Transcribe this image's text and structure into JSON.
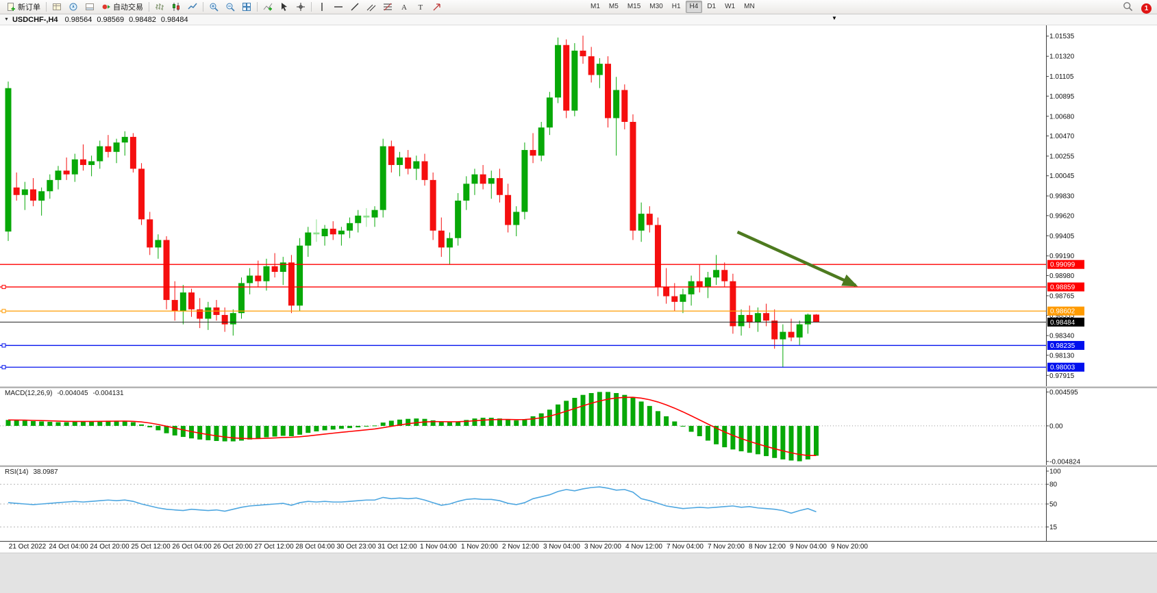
{
  "toolbar": {
    "new_order_label": "新订单",
    "autotrade_label": "自动交易",
    "timeframes": [
      "M1",
      "M5",
      "M15",
      "M30",
      "H1",
      "H4",
      "D1",
      "W1",
      "MN"
    ],
    "active_timeframe": "H4",
    "notification_count": "1"
  },
  "glyphs": {
    "caption_dropdown": "▼",
    "shift_marker": "▼"
  },
  "chart_header": {
    "title": "USDCHF-,H4",
    "open": "0.98564",
    "high": "0.98569",
    "low": "0.98482",
    "close": "0.98484"
  },
  "chart_data": {
    "type": "candlestick",
    "symbol": "USDCHF",
    "timeframe": "H4",
    "colors": {
      "up": "#07a807",
      "down": "#f50f0f",
      "doji": "#8fe08f",
      "macd_bar": "#07a807",
      "macd_signal": "#ff0000",
      "rsi_line": "#4da6e0"
    },
    "price_axis": [
      "1.01535",
      "1.01320",
      "1.01105",
      "1.00895",
      "1.00680",
      "1.00470",
      "1.00255",
      "1.00045",
      "0.99830",
      "0.99620",
      "0.99405",
      "0.99190",
      "0.98980",
      "0.98765",
      "0.98555",
      "0.98340",
      "0.98130",
      "0.97915"
    ],
    "time_axis": [
      "21 Oct 2022",
      "24 Oct 04:00",
      "24 Oct 20:00",
      "25 Oct 12:00",
      "26 Oct 04:00",
      "26 Oct 20:00",
      "27 Oct 12:00",
      "28 Oct 04:00",
      "30 Oct 23:00",
      "31 Oct 12:00",
      "1 Nov 04:00",
      "1 Nov 20:00",
      "2 Nov 12:00",
      "3 Nov 04:00",
      "3 Nov 20:00",
      "4 Nov 12:00",
      "7 Nov 04:00",
      "7 Nov 20:00",
      "8 Nov 12:00",
      "9 Nov 04:00",
      "9 Nov 20:00"
    ],
    "candles": [
      [
        0.9945,
        1.0105,
        0.9935,
        1.0098
      ],
      [
        0.9992,
        1.0008,
        0.9978,
        0.9984
      ],
      [
        0.9984,
        0.9998,
        0.9968,
        0.999
      ],
      [
        0.999,
        1.0002,
        0.9972,
        0.9978
      ],
      [
        0.9978,
        0.9992,
        0.9962,
        0.9988
      ],
      [
        0.9988,
        1.0006,
        0.998,
        1.0
      ],
      [
        1.0,
        1.0015,
        0.999,
        1.001
      ],
      [
        1.001,
        1.0024,
        1.0,
        1.0006
      ],
      [
        1.0006,
        1.0028,
        0.9998,
        1.0022
      ],
      [
        1.0022,
        1.0038,
        1.001,
        1.0016
      ],
      [
        1.0016,
        1.0026,
        1.0004,
        1.002
      ],
      [
        1.002,
        1.0042,
        1.0012,
        1.0036
      ],
      [
        1.0036,
        1.0048,
        1.0024,
        1.003
      ],
      [
        1.003,
        1.0044,
        1.0018,
        1.004
      ],
      [
        1.004,
        1.0052,
        1.0026,
        1.0046
      ],
      [
        1.0046,
        1.005,
        1.0008,
        1.0012
      ],
      [
        1.0012,
        1.0018,
        0.9952,
        0.9958
      ],
      [
        0.9958,
        0.9966,
        0.992,
        0.9928
      ],
      [
        0.9928,
        0.9942,
        0.9916,
        0.9936
      ],
      [
        0.9936,
        0.994,
        0.9862,
        0.9872
      ],
      [
        0.9872,
        0.9892,
        0.985,
        0.986
      ],
      [
        0.986,
        0.9888,
        0.9846,
        0.988
      ],
      [
        0.988,
        0.9884,
        0.9854,
        0.9862
      ],
      [
        0.9862,
        0.9874,
        0.9842,
        0.9852
      ],
      [
        0.9852,
        0.987,
        0.984,
        0.9864
      ],
      [
        0.9864,
        0.9872,
        0.985,
        0.9856
      ],
      [
        0.9856,
        0.9864,
        0.9838,
        0.9846
      ],
      [
        0.9846,
        0.9862,
        0.9834,
        0.9858
      ],
      [
        0.9858,
        0.9896,
        0.9852,
        0.989
      ],
      [
        0.989,
        0.9906,
        0.9878,
        0.9898
      ],
      [
        0.9898,
        0.9914,
        0.9886,
        0.9892
      ],
      [
        0.9892,
        0.9916,
        0.9882,
        0.9908
      ],
      [
        0.9908,
        0.9922,
        0.9896,
        0.9902
      ],
      [
        0.9902,
        0.9918,
        0.9888,
        0.9912
      ],
      [
        0.9912,
        0.992,
        0.9858,
        0.9866
      ],
      [
        0.9866,
        0.9938,
        0.986,
        0.993
      ],
      [
        0.993,
        0.995,
        0.9918,
        0.9944
      ],
      [
        0.9944,
        0.9958,
        0.9934,
        0.9942
      ],
      [
        0.994,
        0.9952,
        0.993,
        0.9948
      ],
      [
        0.9948,
        0.9956,
        0.9936,
        0.9942
      ],
      [
        0.9942,
        0.995,
        0.993,
        0.9946
      ],
      [
        0.9946,
        0.996,
        0.9938,
        0.9954
      ],
      [
        0.9954,
        0.9968,
        0.9944,
        0.9962
      ],
      [
        0.9962,
        0.997,
        0.995,
        0.996
      ],
      [
        0.996,
        0.9972,
        0.995,
        0.9968
      ],
      [
        0.9968,
        1.0044,
        0.996,
        1.0036
      ],
      [
        1.0036,
        1.0042,
        1.0008,
        1.0016
      ],
      [
        1.0016,
        1.003,
        1.0004,
        1.0024
      ],
      [
        1.0024,
        1.0032,
        1.0006,
        1.0012
      ],
      [
        1.0012,
        1.0026,
        1.0,
        1.002
      ],
      [
        1.002,
        1.0028,
        0.9994,
        1.0
      ],
      [
        1.0,
        1.0008,
        0.9936,
        0.9946
      ],
      [
        0.9946,
        0.996,
        0.9918,
        0.9928
      ],
      [
        0.9928,
        0.9944,
        0.991,
        0.9938
      ],
      [
        0.9938,
        0.9986,
        0.993,
        0.9978
      ],
      [
        0.9978,
        1.0004,
        0.9968,
        0.9996
      ],
      [
        0.9996,
        1.0012,
        0.9984,
        1.0006
      ],
      [
        1.0006,
        1.0016,
        0.999,
        0.9996
      ],
      [
        0.9996,
        1.001,
        0.998,
        1.0002
      ],
      [
        1.0002,
        1.0012,
        0.9976,
        0.9984
      ],
      [
        0.9984,
        0.9996,
        0.9944,
        0.9952
      ],
      [
        0.9952,
        0.9972,
        0.994,
        0.9966
      ],
      [
        0.9966,
        1.004,
        0.9958,
        1.0032
      ],
      [
        1.0032,
        1.005,
        1.0018,
        1.0026
      ],
      [
        1.0026,
        1.0062,
        1.002,
        1.0056
      ],
      [
        1.0056,
        1.0094,
        1.0048,
        1.0088
      ],
      [
        1.0088,
        1.0152,
        1.0082,
        1.0144
      ],
      [
        1.0144,
        1.015,
        1.0066,
        1.0074
      ],
      [
        1.0074,
        1.0146,
        1.0068,
        1.0138
      ],
      [
        1.0138,
        1.0154,
        1.0124,
        1.0132
      ],
      [
        1.0132,
        1.0142,
        1.0104,
        1.0112
      ],
      [
        1.0112,
        1.013,
        1.0098,
        1.0124
      ],
      [
        1.0124,
        1.0132,
        1.0056,
        1.0066
      ],
      [
        1.0066,
        1.011,
        1.0026,
        1.0096
      ],
      [
        1.0096,
        1.0102,
        1.0054,
        1.0062
      ],
      [
        1.0062,
        1.007,
        0.9936,
        0.9946
      ],
      [
        0.9946,
        0.9976,
        0.9934,
        0.9964
      ],
      [
        0.9964,
        0.9972,
        0.9944,
        0.9952
      ],
      [
        0.9952,
        0.996,
        0.9876,
        0.9886
      ],
      [
        0.9886,
        0.9906,
        0.9868,
        0.9876
      ],
      [
        0.9876,
        0.989,
        0.986,
        0.987
      ],
      [
        0.987,
        0.9884,
        0.9858,
        0.9878
      ],
      [
        0.9878,
        0.9898,
        0.9866,
        0.9892
      ],
      [
        0.9892,
        0.991,
        0.988,
        0.9886
      ],
      [
        0.9886,
        0.9902,
        0.9874,
        0.9896
      ],
      [
        0.9896,
        0.992,
        0.9888,
        0.9904
      ],
      [
        0.9904,
        0.9912,
        0.9886,
        0.9892
      ],
      [
        0.9892,
        0.99,
        0.9836,
        0.9844
      ],
      [
        0.9844,
        0.9862,
        0.9834,
        0.9856
      ],
      [
        0.9856,
        0.9866,
        0.9842,
        0.9848
      ],
      [
        0.9848,
        0.9864,
        0.9838,
        0.9858
      ],
      [
        0.9858,
        0.9868,
        0.9844,
        0.985
      ],
      [
        0.985,
        0.9862,
        0.982,
        0.983
      ],
      [
        0.983,
        0.9846,
        0.98,
        0.9838
      ],
      [
        0.9838,
        0.9852,
        0.9828,
        0.9832
      ],
      [
        0.9832,
        0.985,
        0.9824,
        0.9846
      ],
      [
        0.9846,
        0.98575,
        0.9836,
        0.98564
      ],
      [
        0.98564,
        0.98569,
        0.98482,
        0.98484
      ]
    ],
    "hlines": [
      {
        "price": 0.99099,
        "label": "0.99099",
        "color": "#ff0000",
        "handle": false
      },
      {
        "price": 0.98859,
        "label": "0.98859",
        "color": "#ff0000",
        "handle": true
      },
      {
        "price": 0.98602,
        "label": "0.98602",
        "color": "#ff9b00",
        "handle": true
      },
      {
        "price": 0.98235,
        "label": "0.98235",
        "color": "#0010ee",
        "handle": true
      },
      {
        "price": 0.98003,
        "label": "0.98003",
        "color": "#0010ee",
        "handle": true
      }
    ],
    "current_price": {
      "value": 0.98484,
      "label": "0.98484",
      "color": "#000000"
    },
    "arrow": {
      "x1_frac": 0.705,
      "price1": 0.99445,
      "x2_frac": 0.818,
      "price2": 0.98875,
      "color": "#4d7a1f"
    },
    "macd": {
      "label": "MACD(12,26,9)",
      "value": "-0.004045",
      "signal_value": "-0.004131",
      "axis": [
        "0.004595",
        "0.00",
        "-0.004824"
      ],
      "values": [
        0.0008,
        0.00075,
        0.0007,
        0.00065,
        0.0006,
        0.00055,
        0.0005,
        0.0005,
        0.00055,
        0.0006,
        0.0006,
        0.00065,
        0.0007,
        0.0007,
        0.00065,
        0.0005,
        0.0002,
        -0.0002,
        -0.0006,
        -0.001,
        -0.0013,
        -0.0015,
        -0.0017,
        -0.00185,
        -0.00195,
        -0.00205,
        -0.0021,
        -0.0021,
        -0.002,
        -0.00185,
        -0.0017,
        -0.00155,
        -0.00145,
        -0.00135,
        -0.0014,
        -0.0012,
        -0.00095,
        -0.00075,
        -0.0006,
        -0.0005,
        -0.0004,
        -0.0003,
        -0.0002,
        -0.0001,
        5e-05,
        0.00045,
        0.0007,
        0.00085,
        0.00095,
        0.001,
        0.00095,
        0.00075,
        0.00055,
        0.0005,
        0.0006,
        0.0008,
        0.001,
        0.0011,
        0.0011,
        0.001,
        0.00085,
        0.00075,
        0.0009,
        0.0013,
        0.0017,
        0.0022,
        0.0029,
        0.0034,
        0.0038,
        0.0042,
        0.00445,
        0.0046,
        0.0046,
        0.00445,
        0.0042,
        0.0039,
        0.0033,
        0.0027,
        0.002,
        0.0013,
        0.0006,
        -0.0001,
        -0.0008,
        -0.0014,
        -0.002,
        -0.0025,
        -0.0029,
        -0.0032,
        -0.00345,
        -0.00365,
        -0.00385,
        -0.0041,
        -0.00435,
        -0.00455,
        -0.0047,
        -0.0048,
        -0.00455,
        -0.004045
      ]
    },
    "rsi": {
      "label": "RSI(14)",
      "value": "38.0987",
      "axis": [
        "100",
        "80",
        "50",
        "15"
      ],
      "levels": [
        80,
        50,
        15
      ],
      "values": [
        52,
        51,
        50,
        49,
        50,
        51,
        52,
        53,
        54,
        53,
        54,
        55,
        56,
        55,
        56,
        54,
        50,
        47,
        44,
        42,
        41,
        40,
        42,
        41,
        40,
        41,
        39,
        42,
        45,
        47,
        48,
        49,
        50,
        51,
        48,
        52,
        54,
        53,
        54,
        53,
        53,
        54,
        55,
        56,
        56,
        60,
        58,
        59,
        58,
        59,
        56,
        52,
        48,
        50,
        54,
        57,
        58,
        57,
        57,
        55,
        51,
        49,
        52,
        58,
        61,
        64,
        69,
        72,
        70,
        73,
        75,
        76,
        74,
        71,
        72,
        68,
        58,
        55,
        51,
        47,
        45,
        43,
        44,
        45,
        44,
        45,
        46,
        47,
        45,
        46,
        44,
        43,
        42,
        40,
        36,
        40,
        43,
        38.1
      ]
    }
  }
}
